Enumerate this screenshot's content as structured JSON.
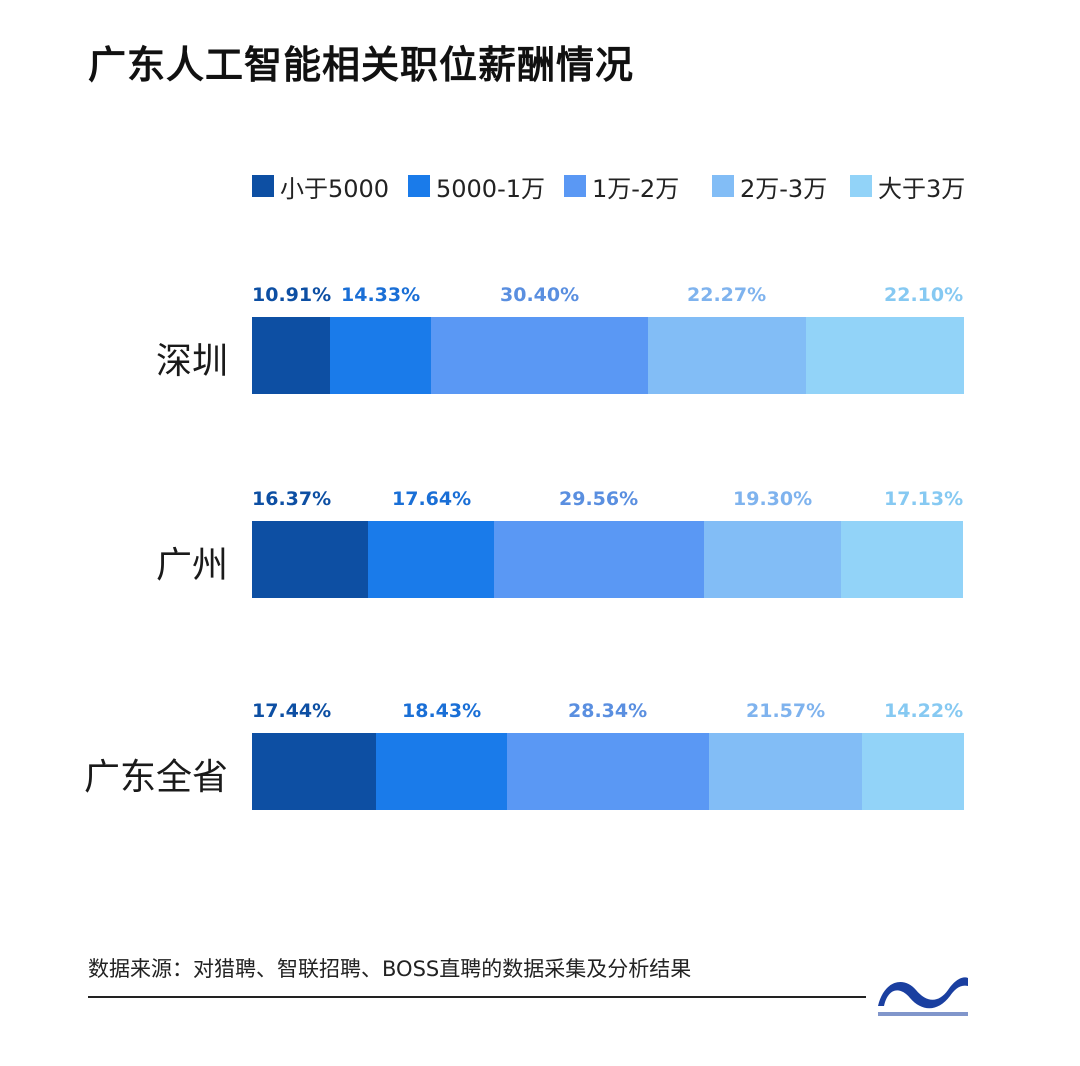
{
  "chart_data": {
    "type": "bar",
    "stacked": true,
    "orientation": "horizontal",
    "title": "广东人工智能相关职位薪酬情况",
    "categories": [
      "深圳",
      "广州",
      "广东全省"
    ],
    "series": [
      {
        "name": "小于5000",
        "color": "#0d4fa3",
        "values": [
          10.91,
          16.37,
          17.44
        ],
        "labels": [
          "10.91%",
          "16.37%",
          "17.44%"
        ]
      },
      {
        "name": "5000-1万",
        "color": "#1a7bea",
        "values": [
          14.33,
          17.64,
          18.43
        ],
        "labels": [
          "14.33%",
          "17.64%",
          "18.43%"
        ]
      },
      {
        "name": "1万-2万",
        "color": "#5a98f4",
        "values": [
          30.4,
          29.56,
          28.34
        ],
        "labels": [
          "30.40%",
          "29.56%",
          "28.34%"
        ]
      },
      {
        "name": "2万-3万",
        "color": "#82bdf6",
        "values": [
          22.27,
          19.3,
          21.57
        ],
        "labels": [
          "22.27%",
          "19.30%",
          "21.57%"
        ]
      },
      {
        "name": "大于3万",
        "color": "#92d3f8",
        "values": [
          22.1,
          17.13,
          14.22
        ],
        "labels": [
          "22.10%",
          "17.13%",
          "14.22%"
        ]
      }
    ],
    "label_colors": [
      "#0d4fa3",
      "#1a6fd6",
      "#5a8fe0",
      "#7fb3ee",
      "#86c9f2"
    ],
    "xlim": [
      0,
      100
    ],
    "unit": "%",
    "legend": "top",
    "grid": false
  },
  "source": "数据来源：对猎聘、智联招聘、BOSS直聘的数据采集及分析结果",
  "logo": {
    "icon": "publisher-wave-logo",
    "color": "#1a3fa0"
  }
}
